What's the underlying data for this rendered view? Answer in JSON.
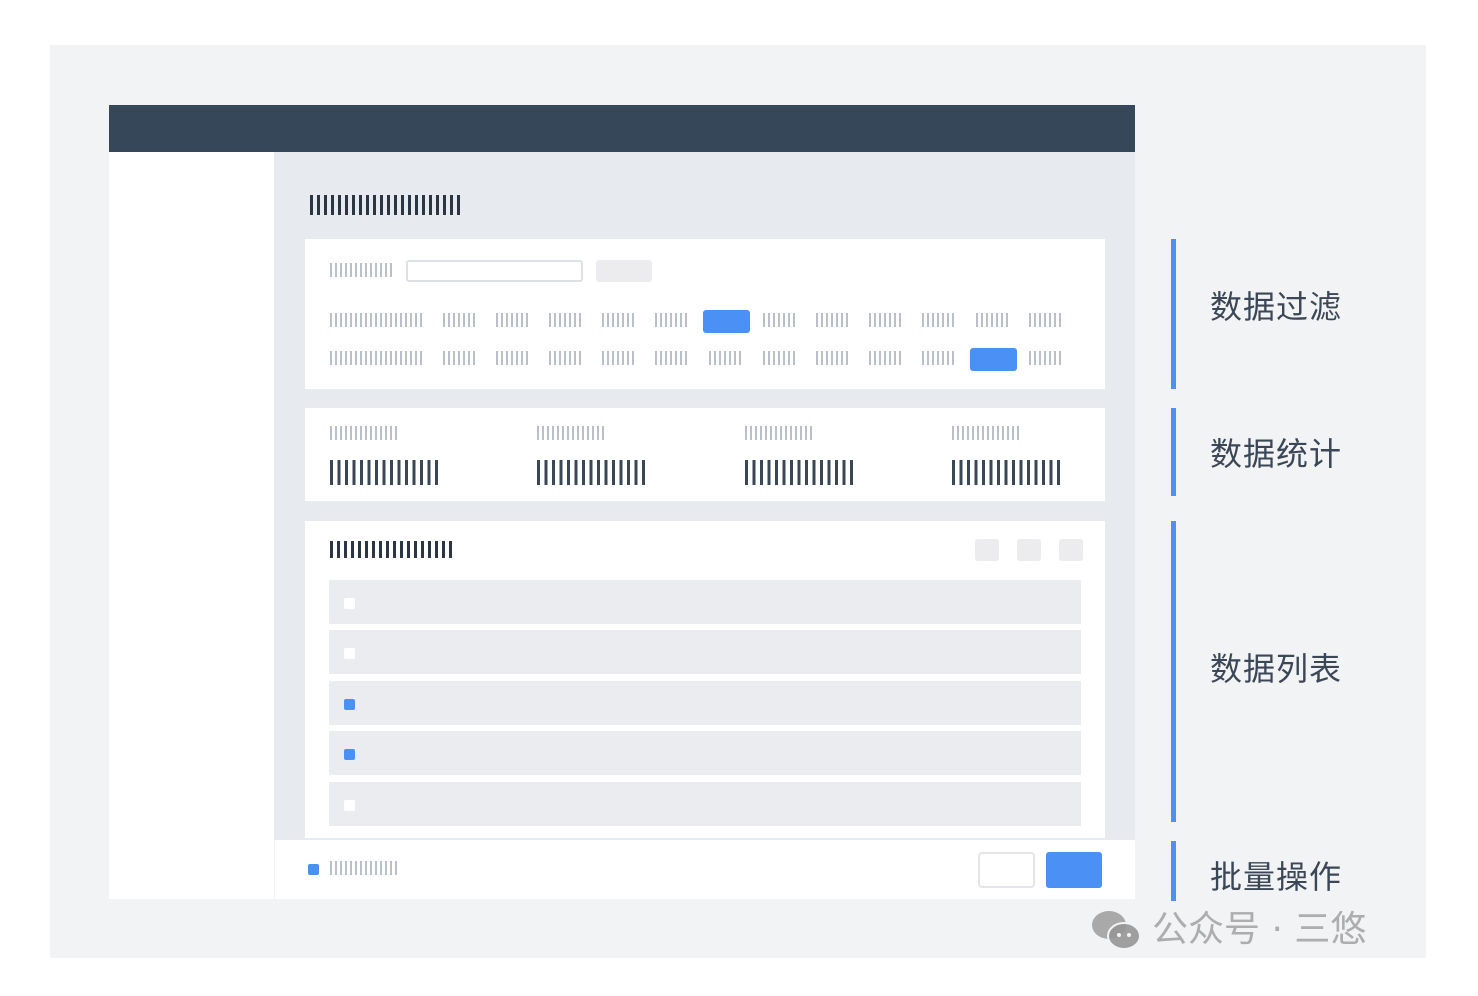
{
  "annotations": {
    "filter": "数据过滤",
    "stats": "数据统计",
    "list": "数据列表",
    "batch": "批量操作"
  },
  "watermark": "公众号 · 三悠",
  "colors": {
    "accent": "#4a90f5",
    "header": "#36475a",
    "content_bg": "#e7ebef",
    "outer_bg": "#f2f3f5"
  },
  "filter": {
    "row1_selected_index": 5,
    "row2_selected_index": 10
  },
  "list": {
    "row_checked": [
      false,
      false,
      true,
      true,
      false
    ]
  },
  "batch": {
    "select_all_checked": true
  }
}
